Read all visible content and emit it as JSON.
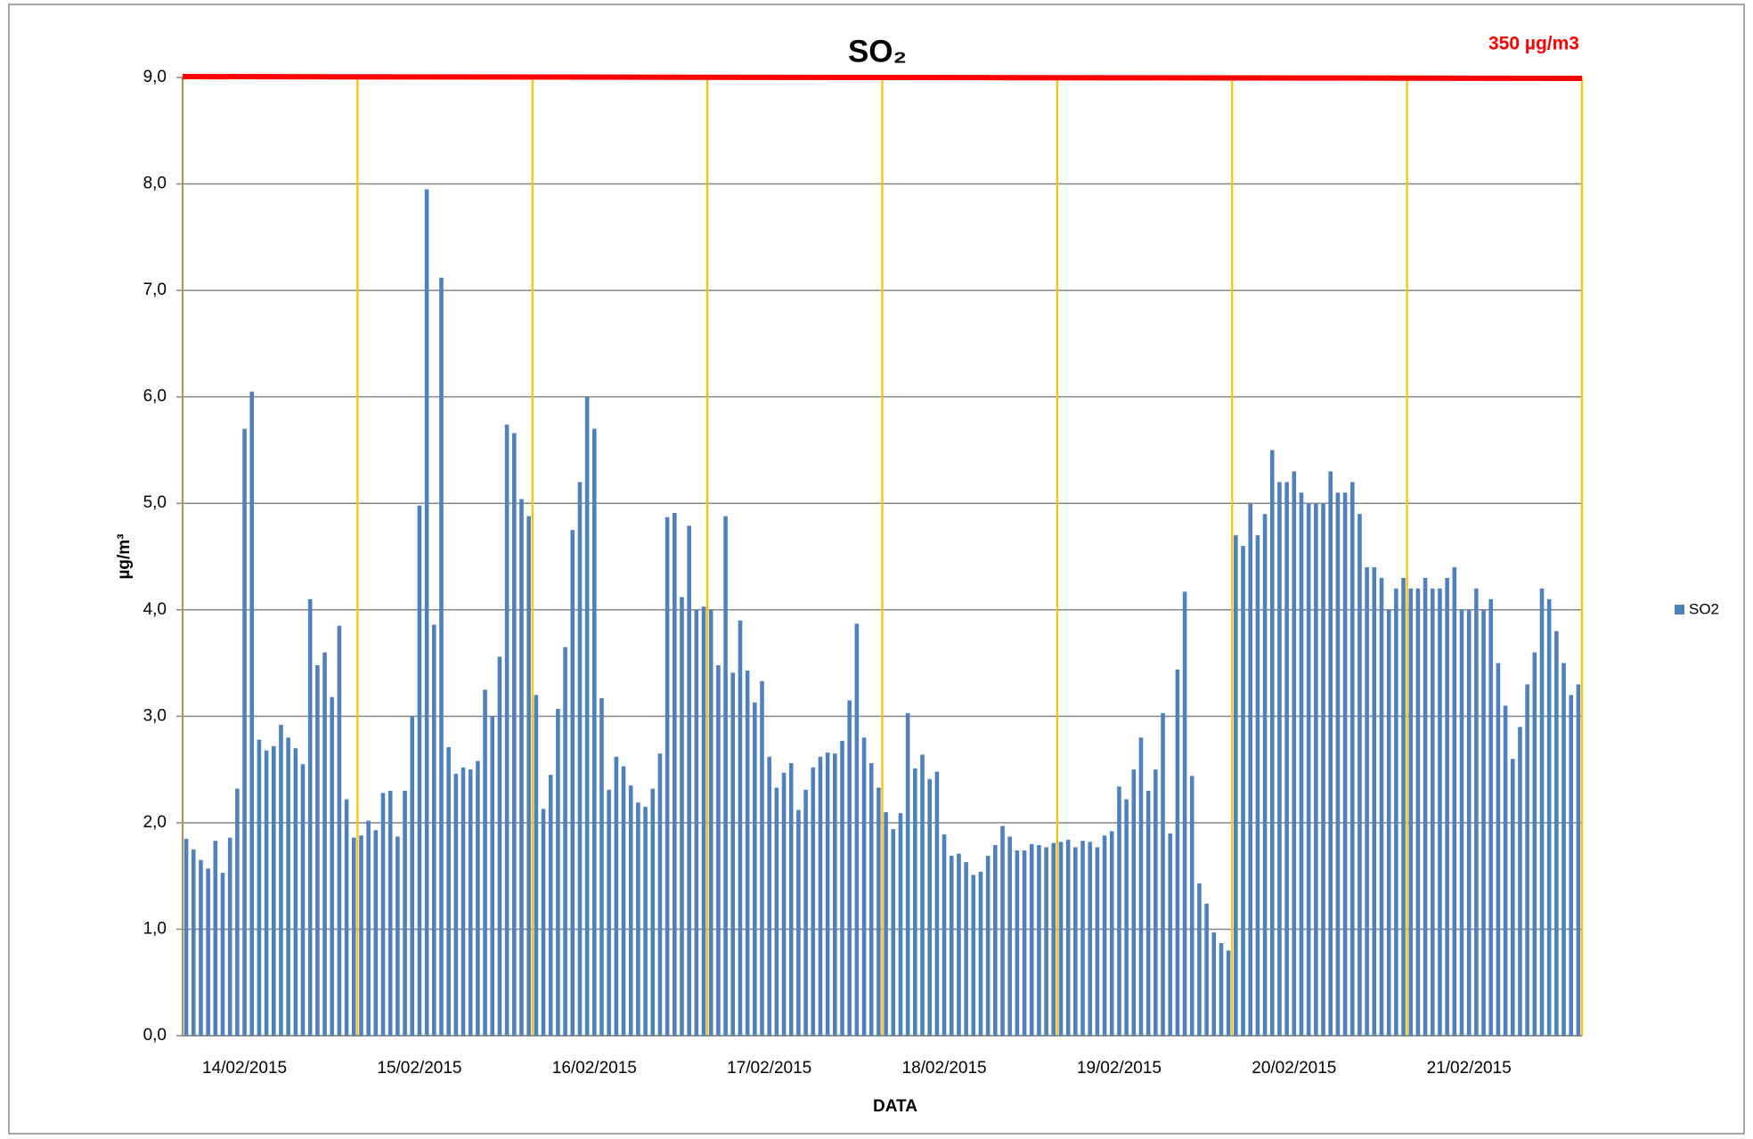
{
  "chart_data": {
    "type": "bar",
    "title": "SO₂",
    "annotation": "350 µg/m3",
    "reference_line": {
      "value": 9,
      "color": "#ff0000"
    },
    "x_label": "DATA",
    "y_label": "µg/m³",
    "grid": true,
    "legend": "right",
    "ylim": [
      0,
      9
    ],
    "yticks": [
      {
        "value": 0,
        "label": "0,0"
      },
      {
        "value": 1,
        "label": "1,0"
      },
      {
        "value": 2,
        "label": "2,0"
      },
      {
        "value": 3,
        "label": "3,0"
      },
      {
        "value": 4,
        "label": "4,0"
      },
      {
        "value": 5,
        "label": "5,0"
      },
      {
        "value": 6,
        "label": "6,0"
      },
      {
        "value": 7,
        "label": "7,0"
      },
      {
        "value": 8,
        "label": "8,0"
      },
      {
        "value": 9,
        "label": "9,0"
      }
    ],
    "categories": [
      null,
      null,
      null,
      null,
      null,
      null,
      null,
      null,
      "14/02/2015",
      null,
      null,
      null,
      null,
      null,
      null,
      null,
      null,
      null,
      null,
      null,
      null,
      null,
      null,
      null,
      null,
      null,
      null,
      null,
      null,
      null,
      null,
      null,
      "15/02/2015",
      null,
      null,
      null,
      null,
      null,
      null,
      null,
      null,
      null,
      null,
      null,
      null,
      null,
      null,
      null,
      null,
      null,
      null,
      null,
      null,
      null,
      null,
      null,
      "16/02/2015",
      null,
      null,
      null,
      null,
      null,
      null,
      null,
      null,
      null,
      null,
      null,
      null,
      null,
      null,
      null,
      null,
      null,
      null,
      null,
      null,
      null,
      null,
      null,
      "17/02/2015",
      null,
      null,
      null,
      null,
      null,
      null,
      null,
      null,
      null,
      null,
      null,
      null,
      null,
      null,
      null,
      null,
      null,
      null,
      null,
      null,
      null,
      null,
      null,
      "18/02/2015",
      null,
      null,
      null,
      null,
      null,
      null,
      null,
      null,
      null,
      null,
      null,
      null,
      null,
      null,
      null,
      null,
      null,
      null,
      null,
      null,
      null,
      null,
      null,
      "19/02/2015",
      null,
      null,
      null,
      null,
      null,
      null,
      null,
      null,
      null,
      null,
      null,
      null,
      null,
      null,
      null,
      null,
      null,
      null,
      null,
      null,
      null,
      null,
      null,
      "20/02/2015",
      null,
      null,
      null,
      null,
      null,
      null,
      null,
      null,
      null,
      null,
      null,
      null,
      null,
      null,
      null,
      null,
      null,
      null,
      null,
      null,
      null,
      null,
      null,
      "21/02/2015",
      null,
      null,
      null,
      null,
      null,
      null,
      null,
      null,
      null,
      null,
      null,
      null,
      null,
      null,
      null
    ],
    "series": [
      {
        "name": "SO2",
        "color": "#4f81bd",
        "values": [
          1.85,
          1.75,
          1.65,
          1.57,
          1.83,
          1.53,
          1.86,
          2.32,
          5.7,
          6.05,
          2.78,
          2.68,
          2.72,
          2.92,
          2.8,
          2.7,
          2.55,
          4.1,
          3.48,
          3.6,
          3.18,
          3.85,
          2.22,
          1.86,
          1.88,
          2.02,
          1.93,
          2.28,
          2.3,
          1.87,
          2.3,
          3.0,
          4.98,
          7.95,
          3.86,
          7.12,
          2.71,
          2.46,
          2.52,
          2.5,
          2.58,
          3.25,
          3.0,
          3.56,
          5.74,
          5.66,
          5.04,
          4.88,
          3.2,
          2.13,
          2.45,
          3.07,
          3.65,
          4.75,
          5.2,
          6.0,
          5.7,
          3.17,
          2.31,
          2.62,
          2.53,
          2.35,
          2.19,
          2.15,
          2.32,
          2.65,
          4.87,
          4.91,
          4.12,
          4.79,
          4.0,
          4.03,
          4.0,
          3.48,
          4.88,
          3.41,
          3.9,
          3.43,
          3.13,
          3.33,
          2.62,
          2.33,
          2.47,
          2.56,
          2.12,
          2.31,
          2.52,
          2.62,
          2.66,
          2.65,
          2.77,
          3.15,
          3.87,
          2.8,
          2.56,
          2.33,
          2.1,
          1.94,
          2.09,
          3.03,
          2.51,
          2.64,
          2.41,
          2.48,
          1.89,
          1.69,
          1.71,
          1.63,
          1.51,
          1.54,
          1.69,
          1.79,
          1.97,
          1.87,
          1.74,
          1.74,
          1.8,
          1.79,
          1.77,
          1.81,
          1.82,
          1.84,
          1.77,
          1.83,
          1.82,
          1.77,
          1.88,
          1.92,
          2.34,
          2.22,
          2.5,
          2.8,
          2.3,
          2.5,
          3.03,
          1.9,
          3.44,
          4.17,
          2.44,
          1.43,
          1.24,
          0.97,
          0.87,
          0.8,
          4.7,
          4.6,
          5.0,
          4.7,
          4.9,
          5.5,
          5.2,
          5.2,
          5.3,
          5.1,
          5.0,
          5.0,
          5.0,
          5.3,
          5.1,
          5.1,
          5.2,
          4.9,
          4.4,
          4.4,
          4.3,
          4.0,
          4.2,
          4.3,
          4.2,
          4.2,
          4.3,
          4.2,
          4.2,
          4.3,
          4.4,
          4.0,
          4.0,
          4.2,
          4.0,
          4.1,
          3.5,
          3.1,
          2.6,
          2.9,
          3.3,
          3.6,
          4.2,
          4.1,
          3.8,
          3.5,
          3.2,
          3.3
        ]
      }
    ]
  }
}
